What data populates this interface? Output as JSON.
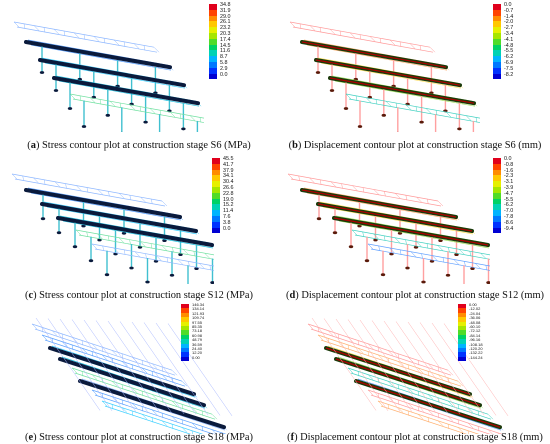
{
  "panels": [
    {
      "letter": "a",
      "caption": "Stress contour plot at construction stage S6 (MPa)",
      "legend": [
        "34.8",
        "31.9",
        "29.0",
        "26.1",
        "23.2",
        "20.3",
        "17.4",
        "14.5",
        "11.6",
        "8.7",
        "5.8",
        "2.9",
        "0.0"
      ],
      "type": "stress",
      "stage": 6
    },
    {
      "letter": "b",
      "caption": "Displacement contour plot at construction stage S6 (mm)",
      "legend": [
        "0.0",
        "-0.7",
        "-1.4",
        "-2.0",
        "-2.7",
        "-3.4",
        "-4.1",
        "-4.8",
        "-5.5",
        "-6.2",
        "-6.9",
        "-7.5",
        "-8.2"
      ],
      "type": "displacement",
      "stage": 6
    },
    {
      "letter": "c",
      "caption": "Stress contour plot at construction stage S12 (MPa)",
      "legend": [
        "45.5",
        "41.7",
        "37.9",
        "34.1",
        "30.4",
        "26.6",
        "22.8",
        "19.0",
        "15.2",
        "11.4",
        "7.6",
        "3.8",
        "0.0"
      ],
      "type": "stress",
      "stage": 12
    },
    {
      "letter": "d",
      "caption": "Displacement contour plot at construction stage S12 (mm)",
      "legend": [
        "0.0",
        "-0.8",
        "-1.6",
        "-2.3",
        "-3.1",
        "-3.9",
        "-4.7",
        "-5.5",
        "-6.2",
        "-7.0",
        "-7.8",
        "-8.6",
        "-9.4"
      ],
      "type": "displacement",
      "stage": 12
    },
    {
      "letter": "e",
      "caption": "Stress contour plot at construction stage S18 (MPa)",
      "legend": [
        "146.34",
        "134.14",
        "121.93",
        "109.74",
        "97.55",
        "85.35",
        "73.18",
        "60.98",
        "48.79",
        "36.59",
        "24.40",
        "12.20",
        "0.00"
      ],
      "type": "stress",
      "stage": 18
    },
    {
      "letter": "f",
      "caption": "Displacement contour plot at construction stage S18 (mm)",
      "legend": [
        "0.00",
        "-12.02",
        "-24.04",
        "-36.06",
        "-48.08",
        "-60.10",
        "-72.12",
        "-84.14",
        "-96.16",
        "-108.18",
        "-120.20",
        "-132.22",
        "-144.24"
      ],
      "type": "displacement",
      "stage": 18
    }
  ],
  "scale_colors": [
    "#e0001c",
    "#ff4400",
    "#ff8c00",
    "#ffc800",
    "#e6f000",
    "#a6e600",
    "#50dc28",
    "#00d264",
    "#00d2b4",
    "#00b4ff",
    "#0078ff",
    "#0032ff",
    "#0000d2"
  ]
}
